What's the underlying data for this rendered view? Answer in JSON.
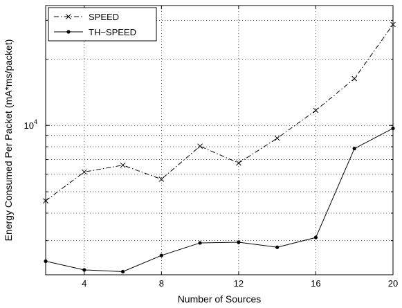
{
  "chart_data": {
    "type": "line",
    "xlabel": "Number of Sources",
    "ylabel": "Energy Consumed Per Packet (mA*ms/packet)",
    "xlim": [
      2,
      20
    ],
    "ylim": [
      2100,
      35000
    ],
    "yscale": "log",
    "grid": true,
    "legend_position": "top-left",
    "x_ticks": [
      4,
      8,
      12,
      16,
      20
    ],
    "x_tick_labels": [
      "4",
      "8",
      "12",
      "16",
      "20"
    ],
    "y_major_tick_label": {
      "base": "10",
      "exponent": "4",
      "value": 10000
    },
    "y_minor_ticks": [
      3000,
      4000,
      5000,
      6000,
      7000,
      8000,
      9000,
      20000,
      30000
    ],
    "x": [
      2,
      4,
      6,
      8,
      10,
      12,
      14,
      16,
      18,
      20
    ],
    "series": [
      {
        "name": "SPEED",
        "marker": "x",
        "line_style": "dash-dot",
        "values": [
          4550,
          6150,
          6600,
          5700,
          8050,
          6750,
          8750,
          11700,
          16300,
          28700
        ]
      },
      {
        "name": "TH−SPEED",
        "marker": "dot",
        "line_style": "solid",
        "values": [
          2420,
          2210,
          2170,
          2570,
          2930,
          2950,
          2800,
          3100,
          7850,
          9700
        ]
      }
    ]
  }
}
